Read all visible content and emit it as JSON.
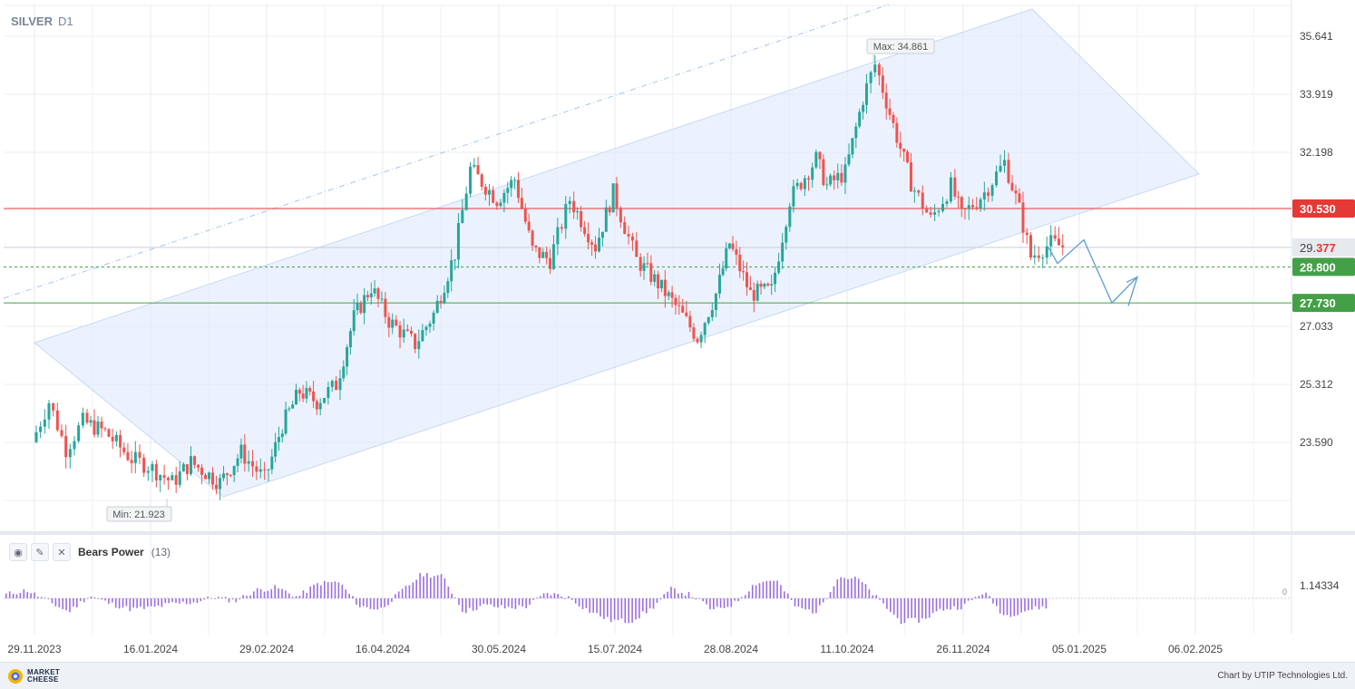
{
  "header": {
    "symbol": "SILVER",
    "timeframe": "D1"
  },
  "indicator": {
    "name": "Bears Power",
    "param": "(13)",
    "level_label": "1.14334",
    "zero_label": "0"
  },
  "footer": {
    "logo_line1": "MARKET",
    "logo_line2": "CHEESE",
    "credit": "Chart by UTIP Technologies Ltd."
  },
  "colors": {
    "bull": "#26a69a",
    "bear": "#ef5350",
    "resistance": "#e53935",
    "support": "#43a047",
    "current": "#e53935",
    "channel": "#dde8fb",
    "histogram": "#9b6ee0",
    "forecast": "#5b9bd5"
  },
  "chart_data": {
    "type": "candlestick",
    "timeframe": "D1",
    "x_ticks": [
      "29.11.2023",
      "16.01.2024",
      "29.02.2024",
      "16.04.2024",
      "30.05.2024",
      "15.07.2024",
      "28.08.2024",
      "11.10.2024",
      "26.11.2024",
      "05.01.2025",
      "06.02.2025"
    ],
    "y_ticks": [
      35.641,
      33.919,
      32.198,
      27.033,
      25.312,
      23.59
    ],
    "y_range": [
      21.5,
      36.4
    ],
    "max_label": "Max: 34.861",
    "min_label": "Min: 21.923",
    "max": 34.861,
    "min": 21.923,
    "current_price": {
      "prefix": "29.",
      "suffix": "377",
      "value": 29.377
    },
    "levels": [
      {
        "name": "resistance",
        "value": 30.53,
        "label": "30.530",
        "style": "solid",
        "color": "#e53935"
      },
      {
        "name": "support-1",
        "value": 28.8,
        "label": "28.800",
        "style": "dashed",
        "color": "#43a047"
      },
      {
        "name": "support-2",
        "value": 27.73,
        "label": "27.730",
        "style": "solid",
        "color": "#43a047"
      }
    ],
    "close_path": [
      [
        "29.11.2023",
        23.6
      ],
      [
        "06.12.2023",
        24.8
      ],
      [
        "13.12.2023",
        23.4
      ],
      [
        "20.12.2023",
        24.2
      ],
      [
        "29.12.2023",
        23.9
      ],
      [
        "09.01.2024",
        23.1
      ],
      [
        "16.01.2024",
        22.9
      ],
      [
        "25.01.2024",
        22.4
      ],
      [
        "01.02.2024",
        23.0
      ],
      [
        "12.02.2024",
        22.4
      ],
      [
        "20.02.2024",
        23.3
      ],
      [
        "29.02.2024",
        22.5
      ],
      [
        "07.03.2024",
        24.1
      ],
      [
        "14.03.2024",
        25.1
      ],
      [
        "21.03.2024",
        24.8
      ],
      [
        "29.03.2024",
        25.3
      ],
      [
        "05.04.2024",
        27.3
      ],
      [
        "12.04.2024",
        28.2
      ],
      [
        "19.04.2024",
        27.2
      ],
      [
        "29.04.2024",
        26.5
      ],
      [
        "06.05.2024",
        27.4
      ],
      [
        "14.05.2024",
        29.2
      ],
      [
        "20.05.2024",
        31.7
      ],
      [
        "30.05.2024",
        30.8
      ],
      [
        "06.06.2024",
        31.4
      ],
      [
        "13.06.2024",
        29.3
      ],
      [
        "20.06.2024",
        29.0
      ],
      [
        "28.06.2024",
        30.8
      ],
      [
        "08.07.2024",
        29.4
      ],
      [
        "15.07.2024",
        31.0
      ],
      [
        "24.07.2024",
        29.0
      ],
      [
        "01.08.2024",
        28.3
      ],
      [
        "09.08.2024",
        27.5
      ],
      [
        "16.08.2024",
        26.7
      ],
      [
        "23.08.2024",
        28.0
      ],
      [
        "28.08.2024",
        29.5
      ],
      [
        "05.09.2024",
        28.0
      ],
      [
        "13.09.2024",
        28.1
      ],
      [
        "20.09.2024",
        30.8
      ],
      [
        "30.09.2024",
        32.0
      ],
      [
        "04.10.2024",
        31.2
      ],
      [
        "11.10.2024",
        31.6
      ],
      [
        "18.10.2024",
        33.8
      ],
      [
        "23.10.2024",
        34.8
      ],
      [
        "30.10.2024",
        33.0
      ],
      [
        "06.11.2024",
        31.3
      ],
      [
        "14.11.2024",
        30.2
      ],
      [
        "22.11.2024",
        31.2
      ],
      [
        "26.11.2024",
        30.3
      ],
      [
        "04.12.2024",
        31.0
      ],
      [
        "11.12.2024",
        31.9
      ],
      [
        "16.12.2024",
        30.5
      ],
      [
        "20.12.2024",
        29.1
      ],
      [
        "27.12.2024",
        29.5
      ],
      [
        "31.12.2024",
        29.4
      ]
    ],
    "indicator": {
      "name": "Bears Power",
      "period": 13,
      "level": 1.14334,
      "zero_line": 0,
      "series": [
        0.15,
        0.3,
        -0.1,
        -0.5,
        0.1,
        -0.2,
        -0.4,
        -0.35,
        -0.2,
        -0.15,
        0.05,
        -0.1,
        0.3,
        0.4,
        0.05,
        0.55,
        0.6,
        -0.3,
        -0.4,
        0.25,
        0.9,
        0.8,
        -0.5,
        -0.25,
        -0.35,
        -0.3,
        0.2,
        0.05,
        -0.45,
        -0.8,
        -0.85,
        -0.4,
        0.35,
        0.1,
        -0.45,
        -0.2,
        0.55,
        0.7,
        -0.35,
        -0.5,
        0.8,
        0.7,
        -0.1,
        -0.85,
        -0.8,
        -0.4,
        -0.3,
        0.25,
        -0.65,
        -0.45,
        -0.3
      ]
    },
    "forecast": {
      "type": "zigzag-arrow",
      "path": [
        29.377,
        28.9,
        29.6,
        27.73,
        28.5
      ],
      "note": ""
    }
  }
}
